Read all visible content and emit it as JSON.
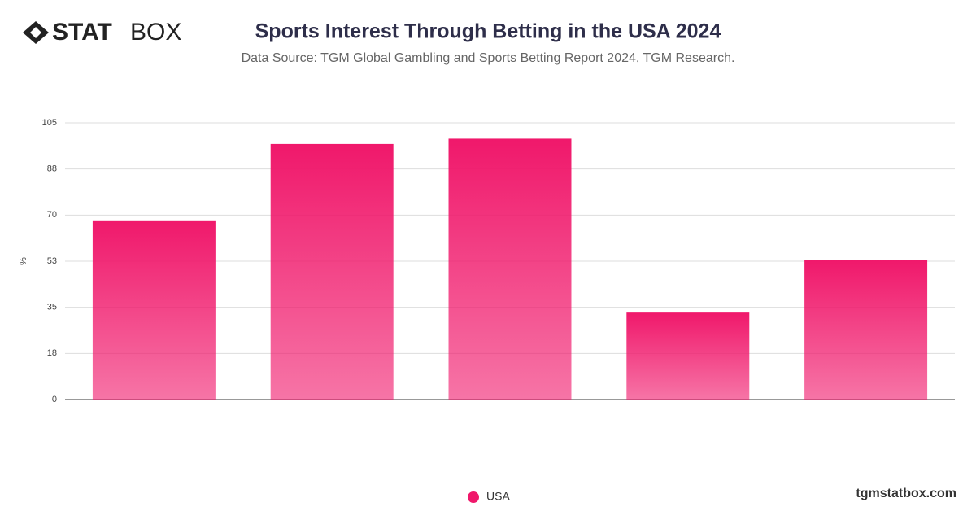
{
  "logo": {
    "bold": "STAT",
    "regular": "BOX"
  },
  "footer": "tgmstatbox.com",
  "chart_data": {
    "type": "bar",
    "title": "Sports Interest Through Betting in the USA 2024",
    "subtitle": "Data Source: TGM Global Gambling and Sports Betting Report 2024, TGM Research.",
    "y_label": "%",
    "categories": [
      null,
      null,
      null,
      null,
      null
    ],
    "series": [
      {
        "name": "USA",
        "color": "#f0186b",
        "values": [
          68,
          97,
          99,
          33,
          53
        ]
      }
    ],
    "ylim": [
      0,
      105
    ],
    "yticks": [
      0,
      {
        "value": 17.5,
        "label": "18"
      },
      35,
      {
        "value": 52.5,
        "label": "53"
      },
      70,
      {
        "value": 87.5,
        "label": "88"
      },
      105
    ],
    "grid": true
  }
}
